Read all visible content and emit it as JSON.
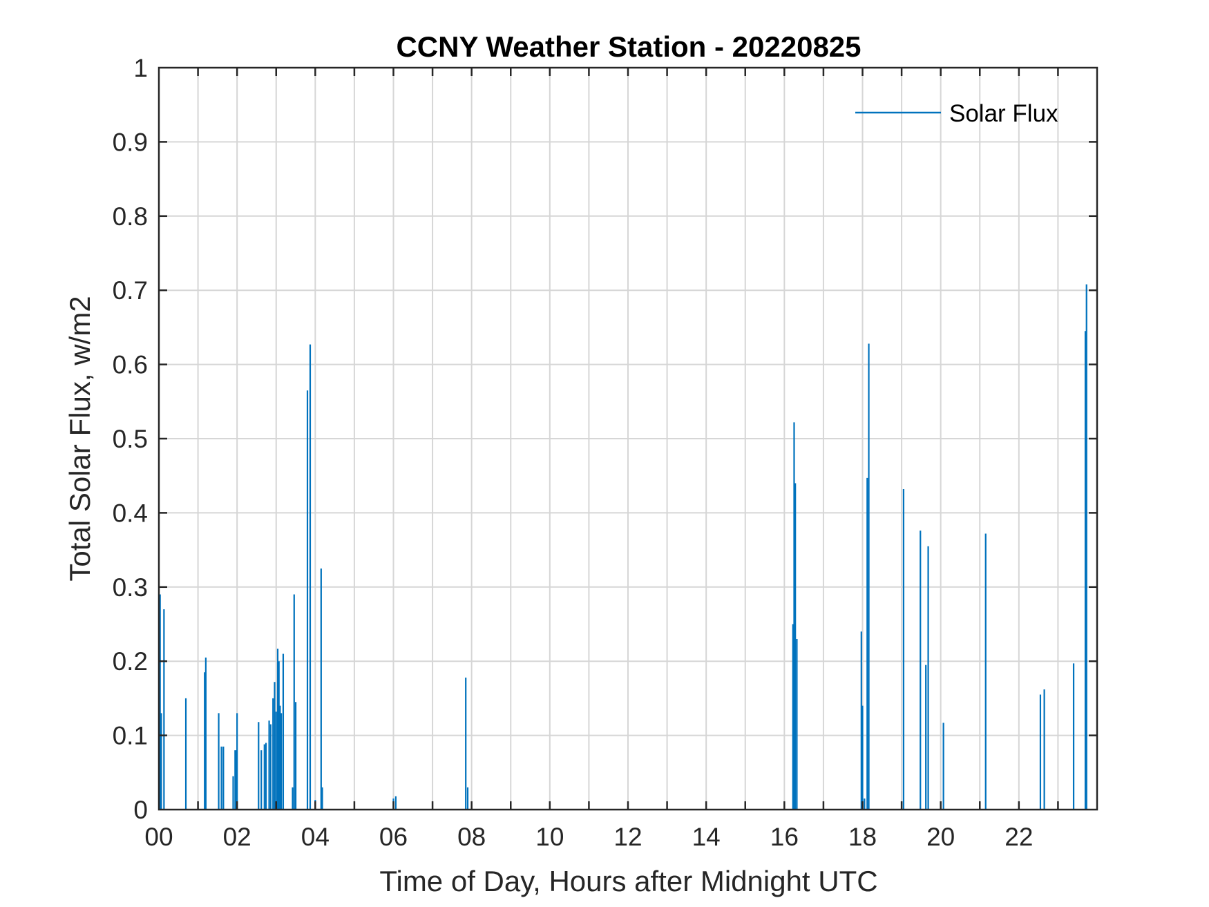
{
  "chart_data": {
    "type": "line",
    "title": "CCNY Weather Station - 20220825",
    "xlabel": "Time of Day, Hours after Midnight UTC",
    "ylabel": "Total Solar Flux, w/m2",
    "xlim": [
      0,
      24
    ],
    "ylim": [
      0,
      1
    ],
    "xticks": [
      0,
      2,
      4,
      6,
      8,
      10,
      12,
      14,
      16,
      18,
      20,
      22
    ],
    "xtick_labels": [
      "00",
      "02",
      "04",
      "06",
      "08",
      "10",
      "12",
      "14",
      "16",
      "18",
      "20",
      "22"
    ],
    "x_minor_grid_step": 1,
    "yticks": [
      0,
      0.1,
      0.2,
      0.3,
      0.4,
      0.5,
      0.6,
      0.7,
      0.8,
      0.9,
      1
    ],
    "ytick_labels": [
      "0",
      "0.1",
      "0.2",
      "0.3",
      "0.4",
      "0.5",
      "0.6",
      "0.7",
      "0.8",
      "0.9",
      "1"
    ],
    "grid": true,
    "legend_position": "top-right",
    "series": [
      {
        "name": "Solar Flux",
        "color": "#0072BD",
        "spikes": [
          [
            0.03,
            0.29
          ],
          [
            0.06,
            0.13
          ],
          [
            0.13,
            0.27
          ],
          [
            0.69,
            0.15
          ],
          [
            1.17,
            0.185
          ],
          [
            1.2,
            0.205
          ],
          [
            1.53,
            0.13
          ],
          [
            1.6,
            0.085
          ],
          [
            1.65,
            0.085
          ],
          [
            1.9,
            0.045
          ],
          [
            1.95,
            0.08
          ],
          [
            1.98,
            0.08
          ],
          [
            2.0,
            0.13
          ],
          [
            2.55,
            0.118
          ],
          [
            2.62,
            0.08
          ],
          [
            2.7,
            0.088
          ],
          [
            2.74,
            0.09
          ],
          [
            2.82,
            0.12
          ],
          [
            2.86,
            0.115
          ],
          [
            2.92,
            0.15
          ],
          [
            2.96,
            0.172
          ],
          [
            3.0,
            0.132
          ],
          [
            3.04,
            0.217
          ],
          [
            3.07,
            0.2
          ],
          [
            3.1,
            0.14
          ],
          [
            3.13,
            0.13
          ],
          [
            3.18,
            0.21
          ],
          [
            3.42,
            0.03
          ],
          [
            3.46,
            0.29
          ],
          [
            3.5,
            0.145
          ],
          [
            3.8,
            0.565
          ],
          [
            3.87,
            0.627
          ],
          [
            4.0,
            0.013
          ],
          [
            4.15,
            0.325
          ],
          [
            4.18,
            0.03
          ],
          [
            6.0,
            0.015
          ],
          [
            6.06,
            0.018
          ],
          [
            7.85,
            0.178
          ],
          [
            7.9,
            0.03
          ],
          [
            16.22,
            0.25
          ],
          [
            16.25,
            0.522
          ],
          [
            16.28,
            0.44
          ],
          [
            16.32,
            0.23
          ],
          [
            17.97,
            0.24
          ],
          [
            18.0,
            0.14
          ],
          [
            18.05,
            0.015
          ],
          [
            18.12,
            0.447
          ],
          [
            18.16,
            0.628
          ],
          [
            19.05,
            0.432
          ],
          [
            19.48,
            0.376
          ],
          [
            19.62,
            0.195
          ],
          [
            19.68,
            0.355
          ],
          [
            20.07,
            0.117
          ],
          [
            21.15,
            0.372
          ],
          [
            22.55,
            0.155
          ],
          [
            22.65,
            0.162
          ],
          [
            23.4,
            0.197
          ],
          [
            23.7,
            0.645
          ],
          [
            23.73,
            0.708
          ]
        ]
      }
    ]
  }
}
